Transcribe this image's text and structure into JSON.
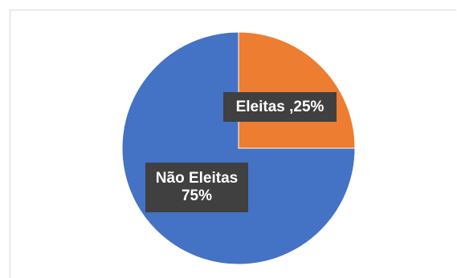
{
  "chart_data": {
    "type": "pie",
    "slices": [
      {
        "label": "Eleitas ,25%",
        "value": 25,
        "color": "#ED7D31"
      },
      {
        "label_line1": "Não Eleitas",
        "label_line2": "75%",
        "value": 75,
        "color": "#4472C4"
      }
    ]
  }
}
